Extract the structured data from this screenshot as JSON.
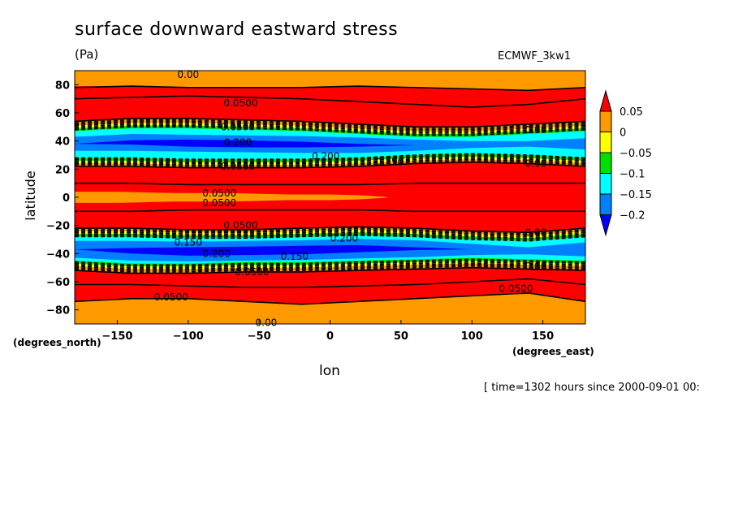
{
  "header": {
    "title": "surface downward eastward stress",
    "units": "(Pa)",
    "dataset": "ECMWF_3kw1"
  },
  "axes": {
    "ylabel": "latitude",
    "xlabel": "lon",
    "y_unit": "(degrees_north)",
    "x_unit": "(degrees_east)"
  },
  "footer": {
    "timestamp": "[ time=1302 hours since 2000-09-01 00:"
  },
  "chart_data": {
    "type": "heatmap",
    "title": "surface downward eastward stress",
    "xlabel": "lon",
    "ylabel": "latitude",
    "xlim": [
      -180,
      180
    ],
    "ylim": [
      -90,
      90
    ],
    "x_ticks": [
      -150,
      -100,
      -50,
      0,
      50,
      100,
      150
    ],
    "y_ticks": [
      80,
      60,
      40,
      20,
      0,
      -20,
      -40,
      -60,
      -80
    ],
    "colorbar": {
      "levels": [
        0.05,
        0,
        -0.05,
        -0.1,
        -0.15,
        -0.2
      ],
      "labels": [
        "0.05",
        "0",
        "-0.05",
        "-0.1",
        "-0.15",
        "-0.2"
      ],
      "colors": [
        "#ff0000",
        "#ff9900",
        "#ffff00",
        "#00e000",
        "#00ffff",
        "#0080ff",
        "#0000ff"
      ],
      "extend": "both"
    },
    "bands": [
      {
        "lat": [
          78,
          90
        ],
        "level": "0 to 0.05",
        "color": "#ff9900"
      },
      {
        "lat": [
          55,
          78
        ],
        "level": "> 0.05",
        "color": "#ff0000"
      },
      {
        "lat": [
          48,
          55
        ],
        "level": "0 to 0.05",
        "color": "#ff9900"
      },
      {
        "lat": [
          25,
          48
        ],
        "level": "< -0.2 to -0.15",
        "color": "#0080ff"
      },
      {
        "lat": [
          20,
          25
        ],
        "level": "0 to 0.05",
        "color": "#ff9900"
      },
      {
        "lat": [
          -15,
          20
        ],
        "level": "> 0.05",
        "color": "#ff0000"
      },
      {
        "lat": [
          -3,
          3
        ],
        "level": "0 to 0.05",
        "color": "#ff9900",
        "lon": [
          -180,
          40
        ]
      },
      {
        "lat": [
          -25,
          -15
        ],
        "level": "0 to 0.05",
        "color": "#ff9900"
      },
      {
        "lat": [
          -50,
          -25
        ],
        "level": "< -0.2 to -0.15",
        "color": "#0080ff"
      },
      {
        "lat": [
          -55,
          -50
        ],
        "level": "0 to 0.05",
        "color": "#ff9900"
      },
      {
        "lat": [
          -72,
          -55
        ],
        "level": "> 0.05",
        "color": "#ff0000"
      },
      {
        "lat": [
          -90,
          -72
        ],
        "level": "0 to 0.05",
        "color": "#ff9900"
      }
    ],
    "contour_labels": [
      {
        "text": "0.00",
        "lon": -100,
        "lat": 87
      },
      {
        "text": "0.0500",
        "lon": -63,
        "lat": 67
      },
      {
        "text": "0.0500",
        "lon": -65,
        "lat": 50
      },
      {
        "text": "0.00",
        "lon": 145,
        "lat": 48
      },
      {
        "text": "0.200",
        "lon": -65,
        "lat": 39
      },
      {
        "text": "0.200",
        "lon": -3,
        "lat": 29
      },
      {
        "text": "0.150",
        "lon": 42,
        "lat": 25
      },
      {
        "text": "0.00",
        "lon": 145,
        "lat": 24
      },
      {
        "text": "0.0500",
        "lon": -65,
        "lat": 22
      },
      {
        "text": "0.0500",
        "lon": -78,
        "lat": 3
      },
      {
        "text": "0.0500",
        "lon": -78,
        "lat": -4
      },
      {
        "text": "0.0500",
        "lon": -63,
        "lat": -20
      },
      {
        "text": "0.00",
        "lon": 145,
        "lat": -25
      },
      {
        "text": "0.150",
        "lon": -100,
        "lat": -32
      },
      {
        "text": "0.200",
        "lon": 10,
        "lat": -29
      },
      {
        "text": "0.200",
        "lon": -80,
        "lat": -40
      },
      {
        "text": "0.150",
        "lon": -25,
        "lat": -42
      },
      {
        "text": "0.00",
        "lon": 145,
        "lat": -49
      },
      {
        "text": "0.0500",
        "lon": -55,
        "lat": -53
      },
      {
        "text": "0.0500",
        "lon": -112,
        "lat": -71
      },
      {
        "text": "0.0500",
        "lon": 131,
        "lat": -65
      },
      {
        "text": "0.00",
        "lon": -45,
        "lat": -89
      }
    ]
  }
}
